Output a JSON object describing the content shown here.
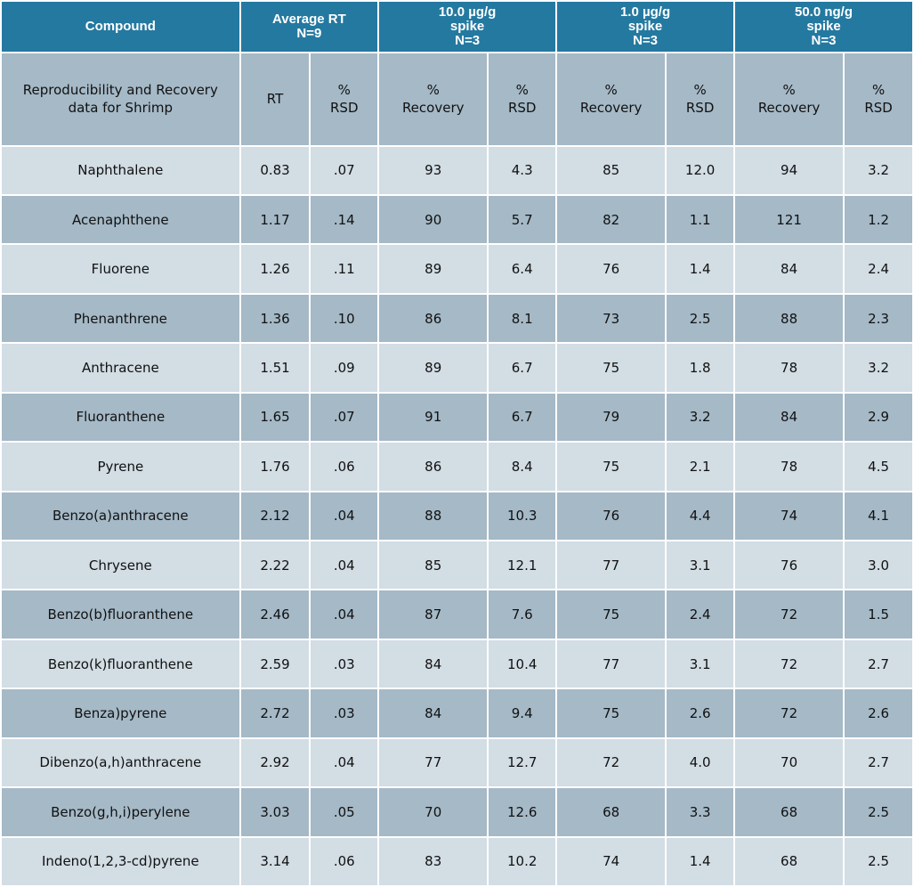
{
  "header": {
    "compound": "Compound",
    "average_rt": [
      "Average RT",
      "N=9"
    ],
    "spike_10": [
      "10.0 µg/g",
      "spike",
      "N=3"
    ],
    "spike_1": [
      "1.0 µg/g",
      "spike",
      "N=3"
    ],
    "spike_50": [
      "50.0 ng/g",
      "spike",
      "N=3"
    ]
  },
  "subheader": {
    "caption": [
      "Reproducibility and Recovery",
      "data for Shrimp"
    ],
    "rt": "RT",
    "rsd": [
      "%",
      "RSD"
    ],
    "recovery": [
      "%",
      "Recovery"
    ]
  },
  "rows": [
    {
      "compound": "Naphthalene",
      "rt": "0.83",
      "rt_rsd": ".07",
      "rec_10": "93",
      "rsd_10": "4.3",
      "rec_1": "85",
      "rsd_1": "12.0",
      "rec_50": "94",
      "rsd_50": "3.2"
    },
    {
      "compound": "Acenaphthene",
      "rt": "1.17",
      "rt_rsd": ".14",
      "rec_10": "90",
      "rsd_10": "5.7",
      "rec_1": "82",
      "rsd_1": "1.1",
      "rec_50": "121",
      "rsd_50": "1.2"
    },
    {
      "compound": "Fluorene",
      "rt": "1.26",
      "rt_rsd": ".11",
      "rec_10": "89",
      "rsd_10": "6.4",
      "rec_1": "76",
      "rsd_1": "1.4",
      "rec_50": "84",
      "rsd_50": "2.4"
    },
    {
      "compound": "Phenanthrene",
      "rt": "1.36",
      "rt_rsd": ".10",
      "rec_10": "86",
      "rsd_10": "8.1",
      "rec_1": "73",
      "rsd_1": "2.5",
      "rec_50": "88",
      "rsd_50": "2.3"
    },
    {
      "compound": "Anthracene",
      "rt": "1.51",
      "rt_rsd": ".09",
      "rec_10": "89",
      "rsd_10": "6.7",
      "rec_1": "75",
      "rsd_1": "1.8",
      "rec_50": "78",
      "rsd_50": "3.2"
    },
    {
      "compound": "Fluoranthene",
      "rt": "1.65",
      "rt_rsd": ".07",
      "rec_10": "91",
      "rsd_10": "6.7",
      "rec_1": "79",
      "rsd_1": "3.2",
      "rec_50": "84",
      "rsd_50": "2.9"
    },
    {
      "compound": "Pyrene",
      "rt": "1.76",
      "rt_rsd": ".06",
      "rec_10": "86",
      "rsd_10": "8.4",
      "rec_1": "75",
      "rsd_1": "2.1",
      "rec_50": "78",
      "rsd_50": "4.5"
    },
    {
      "compound": "Benzo(a)anthracene",
      "rt": "2.12",
      "rt_rsd": ".04",
      "rec_10": "88",
      "rsd_10": "10.3",
      "rec_1": "76",
      "rsd_1": "4.4",
      "rec_50": "74",
      "rsd_50": "4.1"
    },
    {
      "compound": "Chrysene",
      "rt": "2.22",
      "rt_rsd": ".04",
      "rec_10": "85",
      "rsd_10": "12.1",
      "rec_1": "77",
      "rsd_1": "3.1",
      "rec_50": "76",
      "rsd_50": "3.0"
    },
    {
      "compound": "Benzo(b)fluoranthene",
      "rt": "2.46",
      "rt_rsd": ".04",
      "rec_10": "87",
      "rsd_10": "7.6",
      "rec_1": "75",
      "rsd_1": "2.4",
      "rec_50": "72",
      "rsd_50": "1.5"
    },
    {
      "compound": "Benzo(k)fluoranthene",
      "rt": "2.59",
      "rt_rsd": ".03",
      "rec_10": "84",
      "rsd_10": "10.4",
      "rec_1": "77",
      "rsd_1": "3.1",
      "rec_50": "72",
      "rsd_50": "2.7"
    },
    {
      "compound": "Benza)pyrene",
      "rt": "2.72",
      "rt_rsd": ".03",
      "rec_10": "84",
      "rsd_10": "9.4",
      "rec_1": "75",
      "rsd_1": "2.6",
      "rec_50": "72",
      "rsd_50": "2.6"
    },
    {
      "compound": "Dibenzo(a,h)anthracene",
      "rt": "2.92",
      "rt_rsd": ".04",
      "rec_10": "77",
      "rsd_10": "12.7",
      "rec_1": "72",
      "rsd_1": "4.0",
      "rec_50": "70",
      "rsd_50": "2.7"
    },
    {
      "compound": "Benzo(g,h,i)perylene",
      "rt": "3.03",
      "rt_rsd": ".05",
      "rec_10": "70",
      "rsd_10": "12.6",
      "rec_1": "68",
      "rsd_1": "3.3",
      "rec_50": "68",
      "rsd_50": "2.5"
    },
    {
      "compound": "Indeno(1,2,3-cd)pyrene",
      "rt": "3.14",
      "rt_rsd": ".06",
      "rec_10": "83",
      "rsd_10": "10.2",
      "rec_1": "74",
      "rsd_1": "1.4",
      "rec_50": "68",
      "rsd_50": "2.5"
    }
  ],
  "colors": {
    "header_bg": "#2479a0",
    "header_text": "#ffffff",
    "row_dark": "#a5b9c7",
    "row_light": "#d2dde4"
  }
}
